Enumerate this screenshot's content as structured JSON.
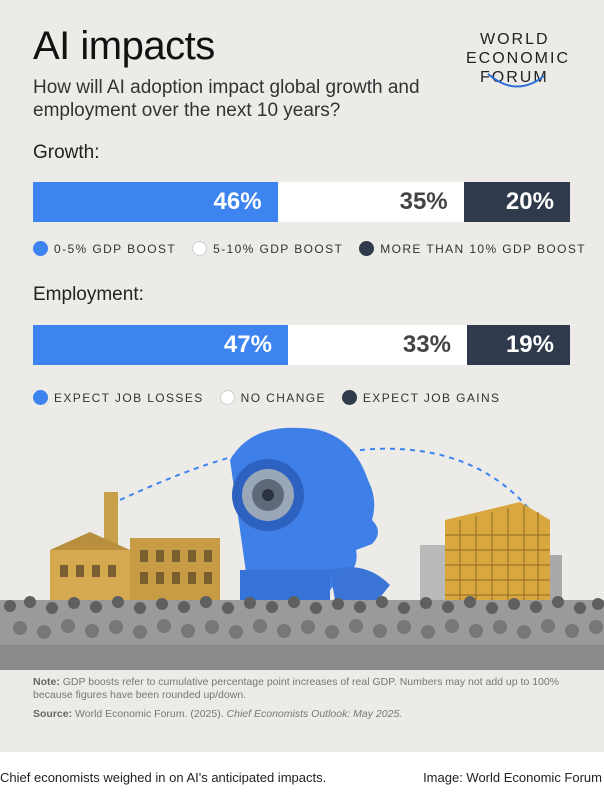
{
  "header": {
    "title": "AI impacts",
    "subtitle": "How will AI adoption impact global growth and employment over the next 10 years?",
    "logo_lines": [
      "WORLD",
      "ECONOMIC",
      "FORUM"
    ]
  },
  "colors": {
    "blue": "#3d84f0",
    "white": "#ffffff",
    "navy": "#2f3b4c",
    "background": "#ecebe7"
  },
  "chart_data": [
    {
      "type": "bar",
      "subtype": "stacked-100",
      "title": "Growth:",
      "categories": [
        "0-5% GDP BOOST",
        "5-10% GDP BOOST",
        "MORE THAN 10% GDP BOOST"
      ],
      "values": [
        46,
        35,
        20
      ],
      "labels": [
        "46%",
        "35%",
        "20%"
      ],
      "legend": "below"
    },
    {
      "type": "bar",
      "subtype": "stacked-100",
      "title": "Employment:",
      "categories": [
        "EXPECT JOB LOSSES",
        "NO CHANGE",
        "EXPECT JOB GAINS"
      ],
      "values": [
        47,
        33,
        19
      ],
      "labels": [
        "47%",
        "33%",
        "19%"
      ],
      "legend": "below"
    }
  ],
  "footer": {
    "note_label": "Note:",
    "note_text": "GDP boosts refer to cumulative percentage point increases of real GDP. Numbers may not add up to 100% because figures have been rounded up/down.",
    "source_label": "Source:",
    "source_text": "World Economic Forum. (2025).",
    "source_title": "Chief Economists Outlook: May 2025."
  },
  "caption": {
    "left": "Chief economists weighed in on AI's anticipated impacts.",
    "right": "Image: World Economic Forum"
  },
  "icons": [
    "wef-logo-arc-icon",
    "ai-robot-head-illustration",
    "factory-illustration",
    "office-tower-illustration",
    "crowd-illustration"
  ]
}
